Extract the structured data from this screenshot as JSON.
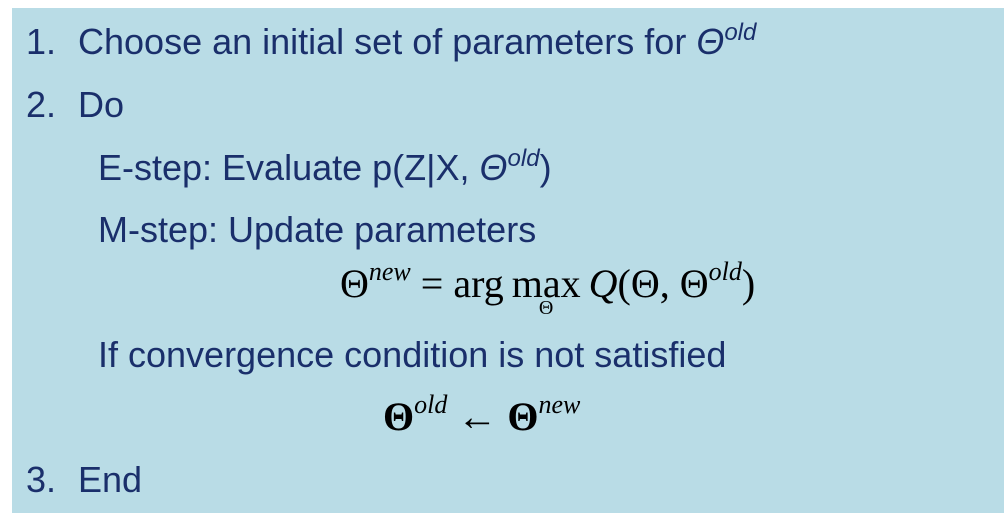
{
  "steps": {
    "s1_num": "1.",
    "s1_text": "Choose an initial set of parameters for ",
    "s1_symbol": "Θ",
    "s1_sup": "old",
    "s2_num": "2.",
    "s2_text": "Do",
    "estep_text": "E-step: Evaluate p(Z|X, ",
    "estep_symbol": "Θ",
    "estep_sup": "old",
    "estep_close": ")",
    "mstep_text": "M-step: Update parameters",
    "if_text": "If convergence condition is not satisfied",
    "s3_num": "3.",
    "s3_text": "End"
  },
  "formula1": {
    "theta": "Θ",
    "sup_new": "new",
    "eq": " = ",
    "arg": "arg",
    "max": "max",
    "max_sub": "Θ",
    "q": "Q",
    "open": "(Θ, Θ",
    "sup_old": "old",
    "close": ")"
  },
  "formula2": {
    "theta_left": "Θ",
    "sup_old": "old",
    "arrow": " ← ",
    "theta_right": "Θ",
    "sup_new": "new"
  },
  "colors": {
    "panel_bg": "#b9dce6",
    "text": "#1a2f6b"
  }
}
